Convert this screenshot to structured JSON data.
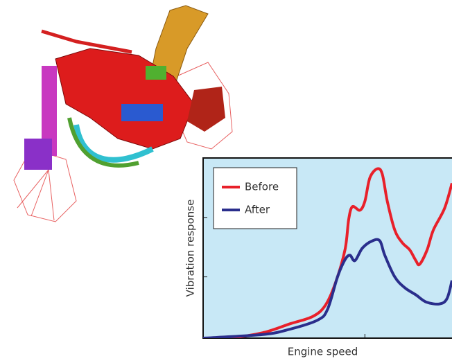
{
  "chart_data": {
    "type": "line",
    "xlabel": "Engine speed",
    "ylabel": "Vibration response",
    "xlim": [
      0,
      100
    ],
    "ylim": [
      0,
      100
    ],
    "xticks": [
      65
    ],
    "yticks": [
      34,
      67
    ],
    "background": "#c8e8f6",
    "legend": "upper left",
    "series": [
      {
        "name": "Before",
        "color": "#e8202a",
        "x": [
          0,
          10,
          24,
          35,
          44,
          49,
          53,
          57,
          58.5,
          60,
          63,
          65,
          67,
          70,
          72,
          74,
          77,
          80,
          83,
          85.5,
          87,
          90,
          92.5,
          97,
          100
        ],
        "values": [
          0,
          0,
          3,
          8,
          12,
          18,
          30,
          49,
          66,
          73,
          71,
          76,
          89,
          94,
          91,
          76,
          60,
          53,
          49,
          43,
          41,
          49,
          60,
          72,
          86
        ]
      },
      {
        "name": "After",
        "color": "#2a2e8c",
        "x": [
          0,
          24,
          35,
          46,
          50,
          54,
          57,
          59,
          61,
          64,
          68,
          71,
          73,
          77,
          81,
          85.5,
          89.7,
          95,
          98,
          100
        ],
        "values": [
          0,
          2,
          5,
          10,
          16,
          34,
          43.5,
          46,
          43,
          50,
          54,
          54,
          46,
          34,
          28,
          24,
          20,
          19,
          22,
          32
        ]
      }
    ]
  }
}
